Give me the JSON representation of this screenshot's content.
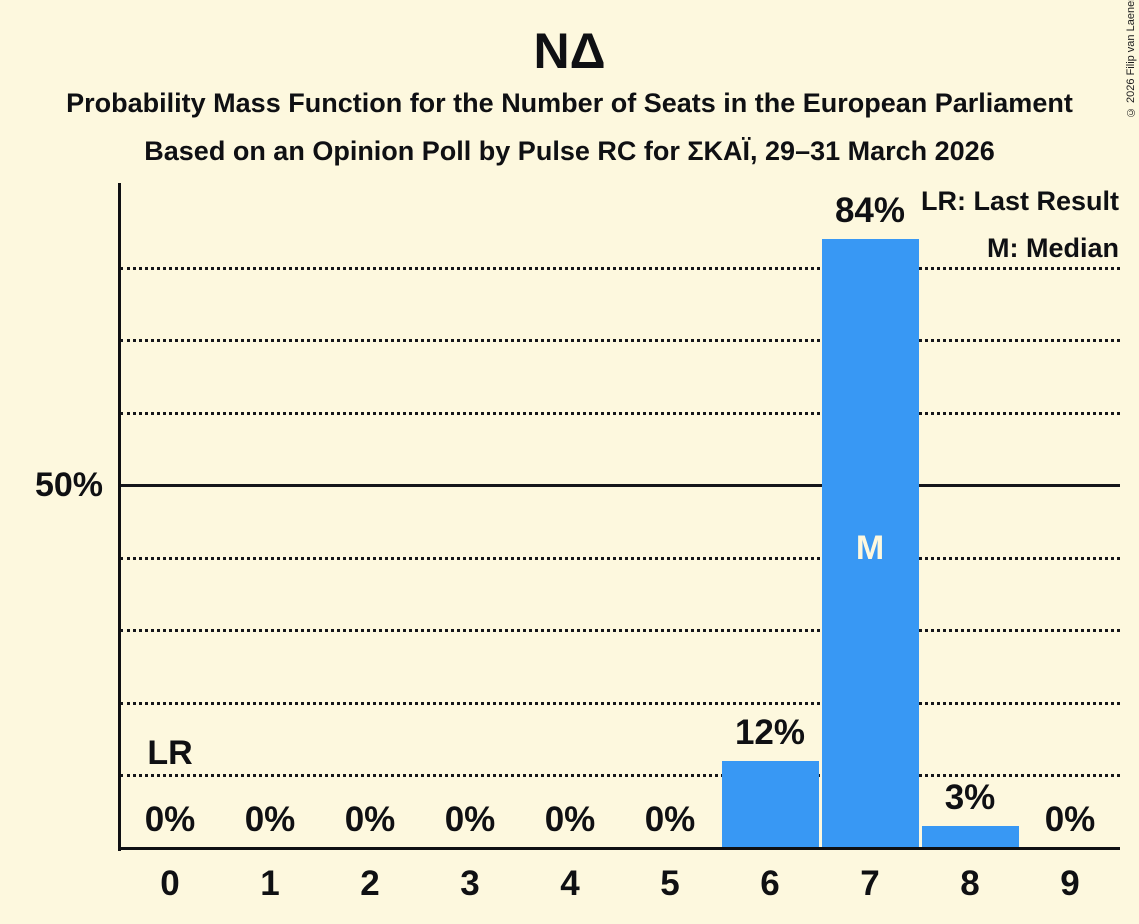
{
  "header": {
    "title": "ΝΔ",
    "subtitle1": "Probability Mass Function for the Number of Seats in the European Parliament",
    "subtitle2": "Based on an Opinion Poll by Pulse RC for ΣΚΑΪ, 29–31 March 2026"
  },
  "copyright": "© 2026 Filip van Laenen",
  "legend": {
    "lr": "LR: Last Result",
    "m": "M: Median"
  },
  "colors": {
    "background": "#FDF8DE",
    "bar": "#3898F4",
    "text": "#0F1013",
    "bar_annotation_text": "#FDF8DE"
  },
  "chart_data": {
    "type": "bar",
    "title": "ΝΔ",
    "categories": [
      "0",
      "1",
      "2",
      "3",
      "4",
      "5",
      "6",
      "7",
      "8",
      "9"
    ],
    "values": [
      0,
      0,
      0,
      0,
      0,
      0,
      12,
      84,
      3,
      0
    ],
    "value_labels": [
      "0%",
      "0%",
      "0%",
      "0%",
      "0%",
      "0%",
      "12%",
      "84%",
      "3%",
      "0%"
    ],
    "xlabel": "",
    "ylabel": "",
    "ylim": [
      0,
      91.7
    ],
    "y_tick_pct": 50,
    "y_tick_label": "50%",
    "gridlines_pct": [
      10,
      20,
      30,
      40,
      50,
      60,
      70,
      80
    ],
    "solid_gridline_pct": 50,
    "grid_style": "dotted",
    "legend_position": "top-right",
    "annotations": {
      "last_result": {
        "label": "LR",
        "category": "0"
      },
      "median": {
        "label": "M",
        "category": "7"
      }
    }
  }
}
